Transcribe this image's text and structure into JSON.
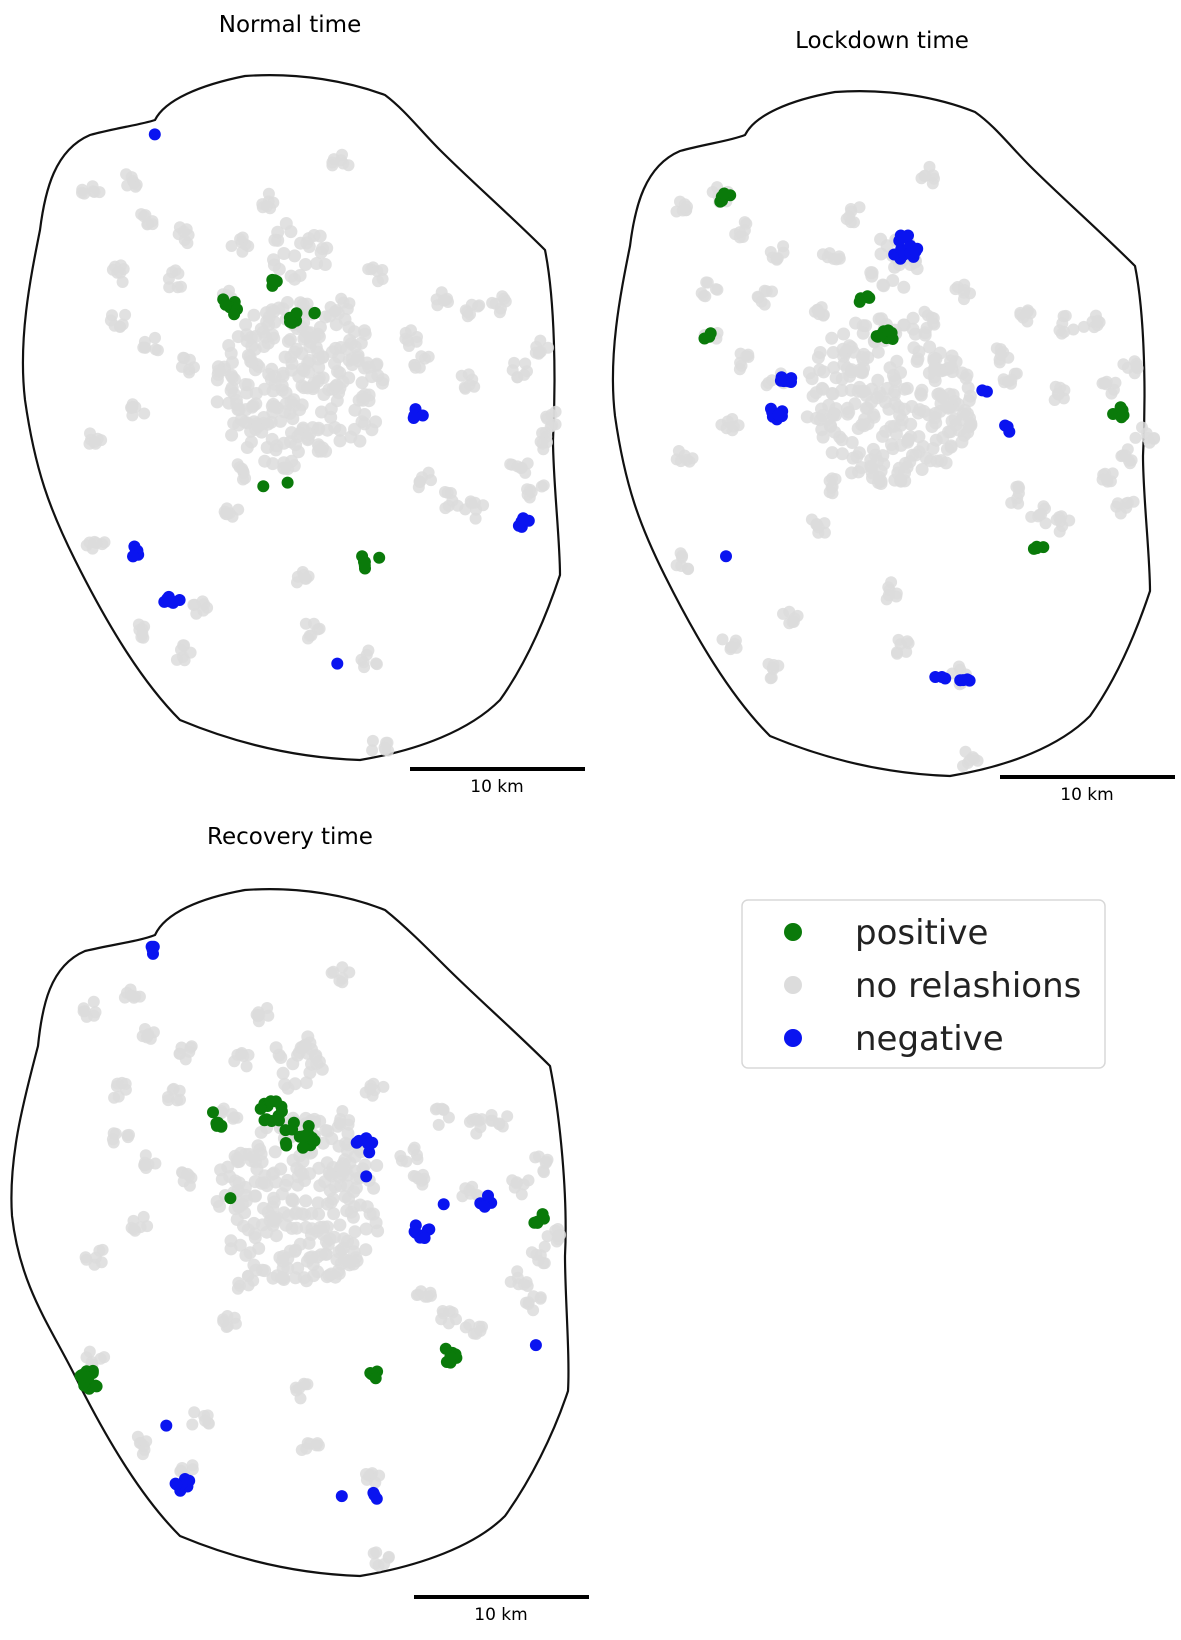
{
  "colors": {
    "positive": "#0a7a0a",
    "no_relation": "#dcdcdc",
    "negative": "#0a14f0",
    "boundary": "#111111"
  },
  "scale_bar": {
    "label": "10 km",
    "length_km": 10
  },
  "legend": {
    "items": [
      {
        "key": "positive",
        "label": "positive",
        "color": "#0a7a0a"
      },
      {
        "key": "no_relation",
        "label": "no relashions",
        "color": "#dcdcdc"
      },
      {
        "key": "negative",
        "label": "negative",
        "color": "#0a14f0"
      }
    ]
  },
  "panels": [
    {
      "title": "Normal time"
    },
    {
      "title": "Lockdown time"
    },
    {
      "title": "Recovery time"
    }
  ]
}
